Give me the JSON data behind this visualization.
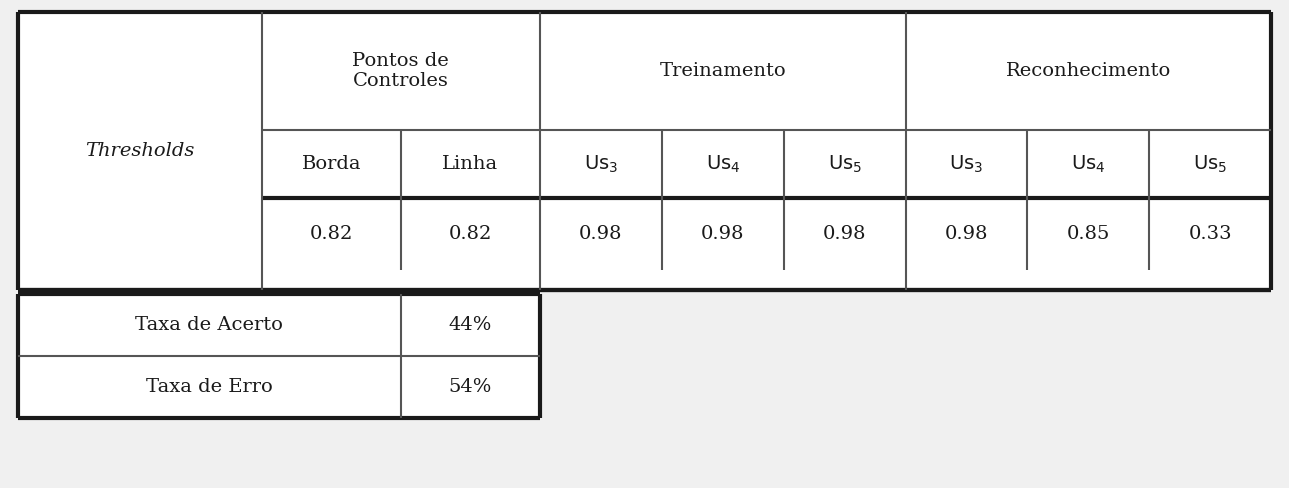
{
  "bg_color": "#f0f0f0",
  "cell_bg": "#ffffff",
  "border_color_outer": "#1a1a1a",
  "border_color_inner": "#555555",
  "text_color": "#1a1a1a",
  "font_size": 14,
  "lw_outer": 3.0,
  "lw_inner": 1.5,
  "col_props": [
    2.1,
    1.2,
    1.2,
    1.05,
    1.05,
    1.05,
    1.05,
    1.05,
    1.05
  ],
  "values": [
    "0.82",
    "0.82",
    "0.98",
    "0.98",
    "0.98",
    "0.98",
    "0.85",
    "0.33"
  ],
  "bottom_labels": [
    "Taxa de Acerto",
    "Taxa de Erro"
  ],
  "bottom_values": [
    "44%",
    "54%"
  ]
}
